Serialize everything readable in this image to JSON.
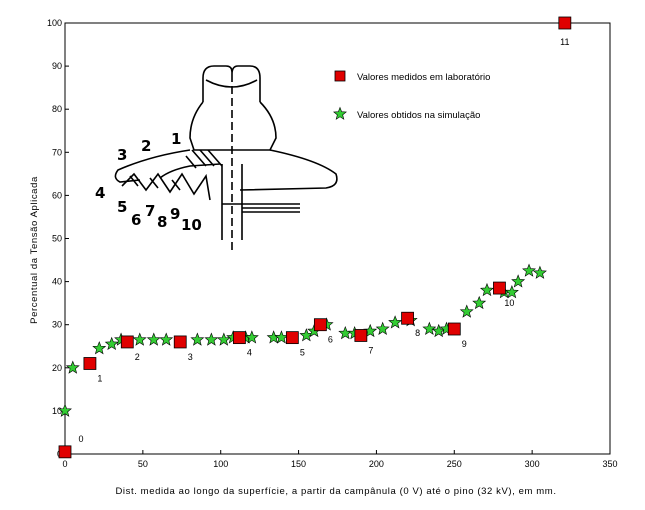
{
  "chart_data": {
    "type": "scatter",
    "title": "",
    "xlabel": "Dist. medida ao longo da superfície, a partir da campânula (0 V) até o pino (32 kV), em mm.",
    "ylabel": "Percentual da Tensão Aplicada",
    "xlim": [
      0,
      350
    ],
    "ylim": [
      0,
      100
    ],
    "xticks": [
      0,
      50,
      100,
      150,
      200,
      250,
      300,
      350
    ],
    "yticks": [
      0,
      10,
      20,
      30,
      40,
      50,
      60,
      70,
      80,
      90,
      100
    ],
    "grid": false,
    "legend_position": "top-right",
    "series": [
      {
        "name": "Valores medidos em laboratório",
        "marker": "square",
        "color": "#e00000",
        "points": [
          {
            "x": 0,
            "y": 0.5,
            "label": "0"
          },
          {
            "x": 16,
            "y": 21,
            "label": "1"
          },
          {
            "x": 40,
            "y": 26,
            "label": "2"
          },
          {
            "x": 74,
            "y": 26,
            "label": "3"
          },
          {
            "x": 112,
            "y": 27,
            "label": "4"
          },
          {
            "x": 146,
            "y": 27,
            "label": "5"
          },
          {
            "x": 164,
            "y": 30,
            "label": "6"
          },
          {
            "x": 190,
            "y": 27.5,
            "label": "7"
          },
          {
            "x": 220,
            "y": 31.5,
            "label": "8"
          },
          {
            "x": 250,
            "y": 29,
            "label": "9"
          },
          {
            "x": 279,
            "y": 38.5,
            "label": "10"
          },
          {
            "x": 321,
            "y": 100,
            "label": "11"
          }
        ]
      },
      {
        "name": "Valores obtidos na simulação",
        "marker": "star",
        "color": "#33cc33",
        "points": [
          {
            "x": 0,
            "y": 10
          },
          {
            "x": 5,
            "y": 20
          },
          {
            "x": 22,
            "y": 24.5
          },
          {
            "x": 30,
            "y": 25.5
          },
          {
            "x": 36,
            "y": 26.5
          },
          {
            "x": 48,
            "y": 26.5
          },
          {
            "x": 57,
            "y": 26.5
          },
          {
            "x": 65,
            "y": 26.5
          },
          {
            "x": 85,
            "y": 26.5
          },
          {
            "x": 94,
            "y": 26.5
          },
          {
            "x": 102,
            "y": 26.5
          },
          {
            "x": 108,
            "y": 27
          },
          {
            "x": 116,
            "y": 27
          },
          {
            "x": 120,
            "y": 27
          },
          {
            "x": 134,
            "y": 27
          },
          {
            "x": 139,
            "y": 27
          },
          {
            "x": 155,
            "y": 27.5
          },
          {
            "x": 160,
            "y": 28.5
          },
          {
            "x": 168,
            "y": 30
          },
          {
            "x": 180,
            "y": 28
          },
          {
            "x": 186,
            "y": 28
          },
          {
            "x": 196,
            "y": 28.5
          },
          {
            "x": 204,
            "y": 29
          },
          {
            "x": 212,
            "y": 30.5
          },
          {
            "x": 222,
            "y": 31
          },
          {
            "x": 234,
            "y": 29
          },
          {
            "x": 240,
            "y": 28.5
          },
          {
            "x": 245,
            "y": 29
          },
          {
            "x": 258,
            "y": 33
          },
          {
            "x": 266,
            "y": 35
          },
          {
            "x": 271,
            "y": 38
          },
          {
            "x": 282,
            "y": 37.5
          },
          {
            "x": 287,
            "y": 37.5
          },
          {
            "x": 291,
            "y": 40
          },
          {
            "x": 298,
            "y": 42.5
          },
          {
            "x": 305,
            "y": 42
          }
        ]
      }
    ],
    "annotations": {
      "inset": "insulator cross-section drawing",
      "inset_labels": [
        "1",
        "2",
        "3",
        "4",
        "5",
        "6",
        "7",
        "8",
        "9",
        "10"
      ]
    }
  }
}
